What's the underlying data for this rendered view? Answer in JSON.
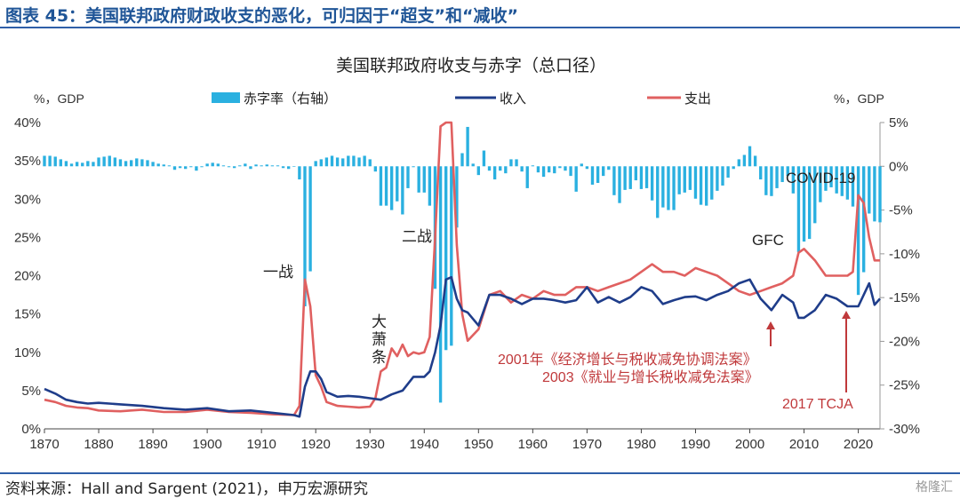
{
  "figure": {
    "title": "图表 45：美国联邦政府财政收支的恶化，可归因于“超支”和“减收”",
    "source": "资料来源：Hall and Sargent (2021)，申万宏源研究",
    "watermark": "格隆汇"
  },
  "colors": {
    "revenue": "#1f3d8a",
    "spending": "#e06060",
    "deficit": "#2ab0e0",
    "title": "#1f5597",
    "annotation_red": "#c0393b"
  },
  "chart_data": {
    "type": "line",
    "title": "美国联邦政府收支与赤字（总口径）",
    "left_axis_label": "%，GDP",
    "right_axis_label": "%，GDP",
    "ylim_left": [
      0,
      40
    ],
    "ylim_right": [
      -30,
      5
    ],
    "xlim": [
      1870,
      2024
    ],
    "left_ticks": [
      "0%",
      "5%",
      "10%",
      "15%",
      "20%",
      "25%",
      "30%",
      "35%",
      "40%"
    ],
    "right_ticks": [
      "5%",
      "0%",
      "-5%",
      "-10%",
      "-15%",
      "-20%",
      "-25%",
      "-30%"
    ],
    "x_ticks": [
      "1870",
      "1880",
      "1890",
      "1900",
      "1910",
      "1920",
      "1930",
      "1940",
      "1950",
      "1960",
      "1970",
      "1980",
      "1990",
      "2000",
      "2010",
      "2020"
    ],
    "legend": [
      "赤字率（右轴）",
      "收入",
      "支出"
    ],
    "series": [
      {
        "name": "收入",
        "axis": "left",
        "x": [
          1870,
          1872,
          1874,
          1876,
          1878,
          1880,
          1884,
          1888,
          1892,
          1896,
          1900,
          1904,
          1908,
          1912,
          1916,
          1917,
          1918,
          1919,
          1920,
          1921,
          1922,
          1924,
          1926,
          1928,
          1930,
          1932,
          1934,
          1936,
          1938,
          1940,
          1941,
          1942,
          1943,
          1944,
          1945,
          1946,
          1947,
          1948,
          1950,
          1952,
          1954,
          1956,
          1958,
          1960,
          1962,
          1964,
          1966,
          1968,
          1970,
          1972,
          1974,
          1976,
          1978,
          1980,
          1982,
          1984,
          1986,
          1988,
          1990,
          1992,
          1994,
          1996,
          1998,
          2000,
          2002,
          2004,
          2006,
          2008,
          2009,
          2010,
          2012,
          2014,
          2016,
          2018,
          2020,
          2022,
          2023,
          2024
        ],
        "y": [
          5.2,
          4.6,
          3.8,
          3.5,
          3.3,
          3.4,
          3.2,
          3.0,
          2.7,
          2.5,
          2.7,
          2.3,
          2.4,
          2.1,
          1.8,
          1.6,
          5.5,
          7.5,
          7.5,
          6.5,
          4.8,
          4.2,
          4.3,
          4.2,
          4.0,
          3.8,
          4.5,
          5.0,
          6.8,
          6.8,
          7.5,
          10.0,
          13.5,
          19.5,
          19.8,
          17.0,
          15.5,
          15.2,
          13.5,
          17.5,
          17.5,
          17.0,
          16.3,
          17.0,
          17.0,
          16.8,
          16.5,
          16.8,
          18.5,
          16.5,
          17.2,
          16.5,
          17.2,
          18.5,
          18.0,
          16.3,
          16.8,
          17.2,
          17.3,
          16.8,
          17.5,
          18.0,
          19.0,
          19.5,
          17.0,
          15.5,
          17.5,
          16.5,
          14.5,
          14.5,
          15.5,
          17.5,
          17.0,
          16.0,
          16.0,
          19.0,
          16.2,
          17.0
        ]
      },
      {
        "name": "支出",
        "axis": "left",
        "x": [
          1870,
          1872,
          1874,
          1876,
          1878,
          1880,
          1884,
          1888,
          1892,
          1896,
          1900,
          1904,
          1908,
          1912,
          1916,
          1917,
          1918,
          1919,
          1920,
          1921,
          1922,
          1924,
          1926,
          1928,
          1930,
          1931,
          1932,
          1933,
          1934,
          1935,
          1936,
          1937,
          1938,
          1939,
          1940,
          1941,
          1942,
          1943,
          1944,
          1945,
          1946,
          1947,
          1948,
          1950,
          1952,
          1954,
          1956,
          1958,
          1960,
          1962,
          1964,
          1966,
          1968,
          1970,
          1972,
          1974,
          1976,
          1978,
          1980,
          1982,
          1984,
          1986,
          1988,
          1990,
          1992,
          1994,
          1996,
          1998,
          2000,
          2002,
          2004,
          2006,
          2008,
          2009,
          2010,
          2012,
          2014,
          2016,
          2018,
          2019,
          2020,
          2021,
          2022,
          2023,
          2024
        ],
        "y": [
          3.8,
          3.5,
          3.0,
          2.8,
          2.7,
          2.4,
          2.3,
          2.5,
          2.2,
          2.2,
          2.5,
          2.2,
          2.1,
          1.9,
          1.8,
          3.0,
          19.5,
          16.0,
          7.0,
          5.5,
          3.5,
          3.0,
          2.9,
          2.8,
          2.9,
          4.0,
          7.5,
          8.0,
          10.5,
          9.5,
          11.0,
          9.5,
          10.0,
          9.8,
          10.0,
          12.0,
          25.0,
          39.5,
          42.0,
          41.0,
          24.0,
          15.0,
          11.5,
          13.0,
          17.5,
          18.0,
          16.5,
          17.5,
          17.0,
          18.0,
          17.5,
          17.5,
          18.5,
          18.5,
          18.0,
          18.5,
          19.0,
          19.5,
          20.5,
          21.5,
          20.5,
          20.5,
          20.0,
          21.0,
          20.5,
          20.0,
          19.0,
          18.0,
          17.5,
          18.0,
          18.5,
          19.0,
          20.0,
          23.0,
          23.5,
          22.0,
          20.0,
          20.0,
          20.0,
          20.5,
          30.5,
          29.5,
          25.0,
          22.0,
          22.0
        ]
      },
      {
        "name": "赤字率（右轴）",
        "axis": "right",
        "type": "bar",
        "x": [
          1870,
          1871,
          1872,
          1873,
          1874,
          1875,
          1876,
          1877,
          1878,
          1879,
          1880,
          1881,
          1882,
          1883,
          1884,
          1885,
          1886,
          1887,
          1888,
          1889,
          1890,
          1891,
          1892,
          1893,
          1894,
          1895,
          1896,
          1897,
          1898,
          1899,
          1900,
          1901,
          1902,
          1903,
          1904,
          1905,
          1906,
          1907,
          1908,
          1909,
          1910,
          1911,
          1912,
          1913,
          1914,
          1915,
          1916,
          1917,
          1918,
          1919,
          1920,
          1921,
          1922,
          1923,
          1924,
          1925,
          1926,
          1927,
          1928,
          1929,
          1930,
          1931,
          1932,
          1933,
          1934,
          1935,
          1936,
          1937,
          1938,
          1939,
          1940,
          1941,
          1942,
          1943,
          1944,
          1945,
          1946,
          1947,
          1948,
          1949,
          1950,
          1951,
          1952,
          1953,
          1954,
          1955,
          1956,
          1957,
          1958,
          1959,
          1960,
          1961,
          1962,
          1963,
          1964,
          1965,
          1966,
          1967,
          1968,
          1969,
          1970,
          1971,
          1972,
          1973,
          1974,
          1975,
          1976,
          1977,
          1978,
          1979,
          1980,
          1981,
          1982,
          1983,
          1984,
          1985,
          1986,
          1987,
          1988,
          1989,
          1990,
          1991,
          1992,
          1993,
          1994,
          1995,
          1996,
          1997,
          1998,
          1999,
          2000,
          2001,
          2002,
          2003,
          2004,
          2005,
          2006,
          2007,
          2008,
          2009,
          2010,
          2011,
          2012,
          2013,
          2014,
          2015,
          2016,
          2017,
          2018,
          2019,
          2020,
          2021,
          2022,
          2023,
          2024
        ],
        "y": [
          1.2,
          1.2,
          1.1,
          0.8,
          0.6,
          0.3,
          0.5,
          0.4,
          0.6,
          0.5,
          1.0,
          1.1,
          1.2,
          1.0,
          0.8,
          0.6,
          0.7,
          0.9,
          0.8,
          0.7,
          0.5,
          0.3,
          0.2,
          0.1,
          -0.4,
          -0.2,
          -0.3,
          -0.1,
          -0.5,
          -0.1,
          0.3,
          0.4,
          0.3,
          0.1,
          -0.1,
          -0.2,
          0.1,
          0.3,
          -0.3,
          0.2,
          0.1,
          0.2,
          0.1,
          0.1,
          -0.2,
          -0.3,
          0.0,
          -1.5,
          -16.0,
          -12.0,
          0.6,
          0.8,
          1.0,
          1.2,
          1.0,
          0.9,
          1.2,
          1.2,
          1.0,
          1.2,
          0.8,
          -0.6,
          -4.5,
          -4.5,
          -5.0,
          -4.0,
          -5.5,
          -2.5,
          -0.1,
          -3.0,
          -3.0,
          -4.5,
          -14.0,
          -27.0,
          -21.0,
          -20.5,
          -7.0,
          1.5,
          4.5,
          0.3,
          -1.0,
          1.8,
          -0.5,
          -1.5,
          -0.5,
          -0.8,
          0.8,
          0.8,
          -0.6,
          -2.5,
          0.1,
          -0.7,
          -1.2,
          -0.7,
          -0.8,
          -0.2,
          -0.5,
          -1.1,
          -2.9,
          0.3,
          -0.3,
          -2.1,
          -1.9,
          -1.1,
          -0.4,
          -3.3,
          -4.2,
          -2.7,
          -2.6,
          -1.6,
          -2.6,
          -2.5,
          -3.9,
          -5.9,
          -4.7,
          -5.0,
          -5.0,
          -3.2,
          -3.0,
          -2.7,
          -3.7,
          -4.4,
          -4.5,
          -3.8,
          -2.8,
          -2.2,
          -1.3,
          -0.3,
          0.8,
          1.3,
          2.3,
          1.2,
          -1.5,
          -3.3,
          -3.4,
          -2.5,
          -1.8,
          -1.1,
          -3.1,
          -9.8,
          -8.6,
          -8.3,
          -6.5,
          -4.1,
          -2.8,
          -2.4,
          -3.1,
          -3.4,
          -3.8,
          -4.6,
          -14.7,
          -12.1,
          -5.4,
          -6.3,
          -6.4
        ]
      }
    ],
    "annotations": [
      {
        "text": "一战"
      },
      {
        "text": "二战"
      },
      {
        "text": "大萧条"
      },
      {
        "text": "GFC"
      },
      {
        "text": "COVID-19"
      },
      {
        "text": "2001年《经济增长与税收减免协调法案》"
      },
      {
        "text": "2003《就业与增长税收减免法案》"
      },
      {
        "text": "2017 TCJA"
      }
    ]
  }
}
